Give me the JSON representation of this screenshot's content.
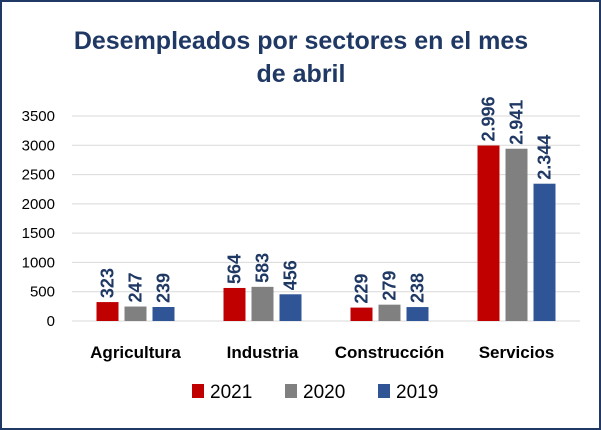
{
  "chart_data": {
    "type": "bar",
    "title": "Desempleados por sectores en el mes de abril",
    "title_lines": [
      "Desempleados por sectores en el mes",
      "de abril"
    ],
    "categories": [
      "Agricultura",
      "Industria",
      "Construcción",
      "Servicios"
    ],
    "series": [
      {
        "name": "2021",
        "color": "#c00000",
        "values": [
          323,
          564,
          229,
          2996
        ],
        "labels": [
          "323",
          "564",
          "229",
          "2.996"
        ]
      },
      {
        "name": "2020",
        "color": "#808080",
        "values": [
          247,
          583,
          279,
          2941
        ],
        "labels": [
          "247",
          "583",
          "279",
          "2.941"
        ]
      },
      {
        "name": "2019",
        "color": "#2f5597",
        "values": [
          239,
          456,
          238,
          2344
        ],
        "labels": [
          "239",
          "456",
          "238",
          "2.344"
        ]
      }
    ],
    "ylim": [
      0,
      3500
    ],
    "yticks": [
      0,
      500,
      1000,
      1500,
      2000,
      2500,
      3000,
      3500
    ],
    "xlabel": "",
    "ylabel": "",
    "grid": true,
    "legend": "bottom"
  },
  "colors": {
    "border": "#1f3864",
    "title": "#1f3864",
    "data_label": "#1f3864"
  }
}
